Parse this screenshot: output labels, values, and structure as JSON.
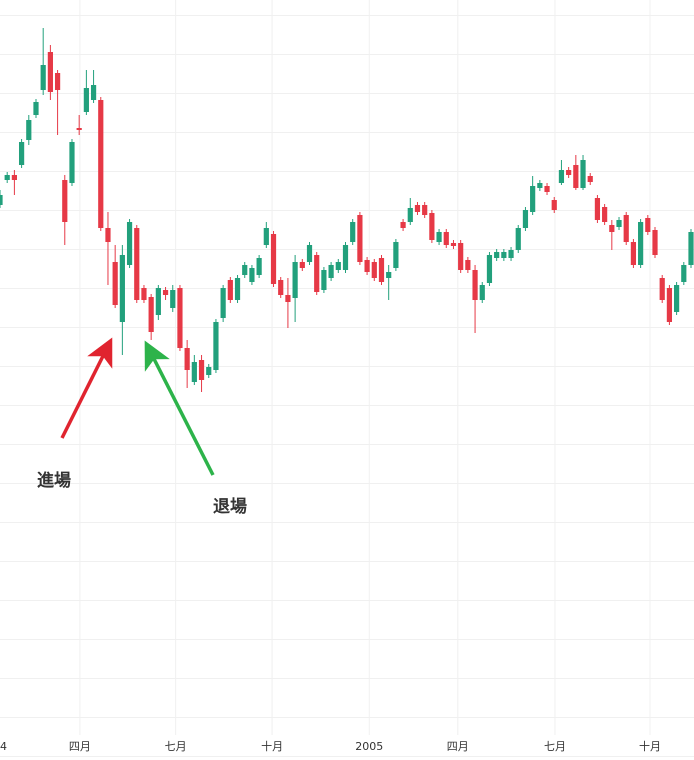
{
  "chart_data": {
    "type": "candlestick",
    "up_color": "#22a07c",
    "down_color": "#e63946",
    "xlim": [
      0,
      96
    ],
    "ylim": [
      0,
      740
    ],
    "xticks": [
      {
        "value": 0,
        "label": "4"
      },
      {
        "value": 11.1,
        "label": "四月"
      },
      {
        "value": 24.4,
        "label": "七月"
      },
      {
        "value": 37.8,
        "label": "十月"
      },
      {
        "value": 51.3,
        "label": "2005"
      },
      {
        "value": 63.6,
        "label": "四月"
      },
      {
        "value": 77.1,
        "label": "七月"
      },
      {
        "value": 90.3,
        "label": "十月"
      }
    ],
    "grid": true,
    "annotations": [
      {
        "text": "進場",
        "color": "#e0242f"
      },
      {
        "text": "退場",
        "color": "#2db34a"
      }
    ],
    "open": [
      535,
      560,
      565,
      575,
      600,
      625,
      650,
      688,
      667,
      560,
      557,
      612,
      628,
      640,
      640,
      512,
      478,
      418,
      475,
      512,
      452,
      443,
      425,
      450,
      432,
      452,
      392,
      358,
      380,
      365,
      370,
      422,
      460,
      440,
      465,
      458,
      465,
      495,
      506,
      460,
      445,
      442,
      478,
      478,
      485,
      450,
      462,
      470,
      470,
      498,
      525,
      480,
      478,
      482,
      462,
      472,
      518,
      518,
      535,
      535,
      527,
      498,
      508,
      497,
      497,
      480,
      470,
      440,
      457,
      482,
      482,
      482,
      490,
      512,
      528,
      552,
      554,
      540,
      557,
      570,
      575,
      552,
      564,
      542,
      533,
      515,
      513,
      525,
      498,
      475,
      522,
      510,
      462,
      452,
      428,
      458,
      475
    ],
    "high": [
      550,
      568,
      570,
      601,
      625,
      641,
      712,
      695,
      670,
      565,
      601,
      625,
      670,
      670,
      643,
      528,
      495,
      495,
      521,
      515,
      455,
      446,
      455,
      453,
      455,
      455,
      400,
      385,
      385,
      376,
      421,
      455,
      463,
      465,
      478,
      475,
      485,
      518,
      509,
      463,
      462,
      485,
      481,
      498,
      488,
      473,
      478,
      481,
      498,
      521,
      528,
      483,
      481,
      485,
      475,
      501,
      521,
      542,
      538,
      538,
      530,
      511,
      511,
      500,
      500,
      483,
      475,
      458,
      488,
      491,
      491,
      493,
      515,
      533,
      564,
      560,
      557,
      543,
      580,
      573,
      585,
      585,
      567,
      545,
      536,
      520,
      523,
      528,
      501,
      521,
      525,
      513,
      465,
      455,
      458,
      478,
      511
    ],
    "low": [
      532,
      557,
      545,
      572,
      595,
      622,
      645,
      640,
      605,
      495,
      554,
      605,
      625,
      637,
      509,
      455,
      432,
      385,
      472,
      437,
      437,
      400,
      420,
      440,
      428,
      389,
      352,
      355,
      348,
      362,
      367,
      418,
      437,
      437,
      462,
      455,
      462,
      492,
      453,
      442,
      412,
      418,
      469,
      475,
      445,
      447,
      459,
      467,
      467,
      495,
      475,
      465,
      459,
      455,
      440,
      469,
      509,
      515,
      525,
      522,
      497,
      495,
      492,
      491,
      467,
      467,
      407,
      437,
      454,
      479,
      479,
      479,
      487,
      509,
      525,
      549,
      545,
      527,
      555,
      562,
      550,
      550,
      555,
      517,
      515,
      490,
      510,
      495,
      472,
      472,
      505,
      482,
      437,
      415,
      425,
      455,
      472
    ],
    "close": [
      545,
      565,
      560,
      598,
      620,
      638,
      675,
      648,
      650,
      518,
      598,
      610,
      652,
      655,
      512,
      498,
      435,
      485,
      518,
      440,
      440,
      408,
      452,
      445,
      450,
      392,
      370,
      378,
      360,
      373,
      418,
      452,
      440,
      462,
      475,
      472,
      482,
      512,
      456,
      445,
      438,
      478,
      472,
      495,
      448,
      470,
      475,
      478,
      495,
      518,
      478,
      468,
      462,
      458,
      468,
      498,
      512,
      532,
      528,
      525,
      500,
      508,
      495,
      494,
      470,
      470,
      440,
      455,
      485,
      488,
      488,
      490,
      512,
      530,
      554,
      557,
      548,
      530,
      570,
      565,
      552,
      580,
      558,
      520,
      518,
      508,
      520,
      498,
      475,
      518,
      508,
      485,
      440,
      418,
      455,
      475,
      508
    ]
  }
}
